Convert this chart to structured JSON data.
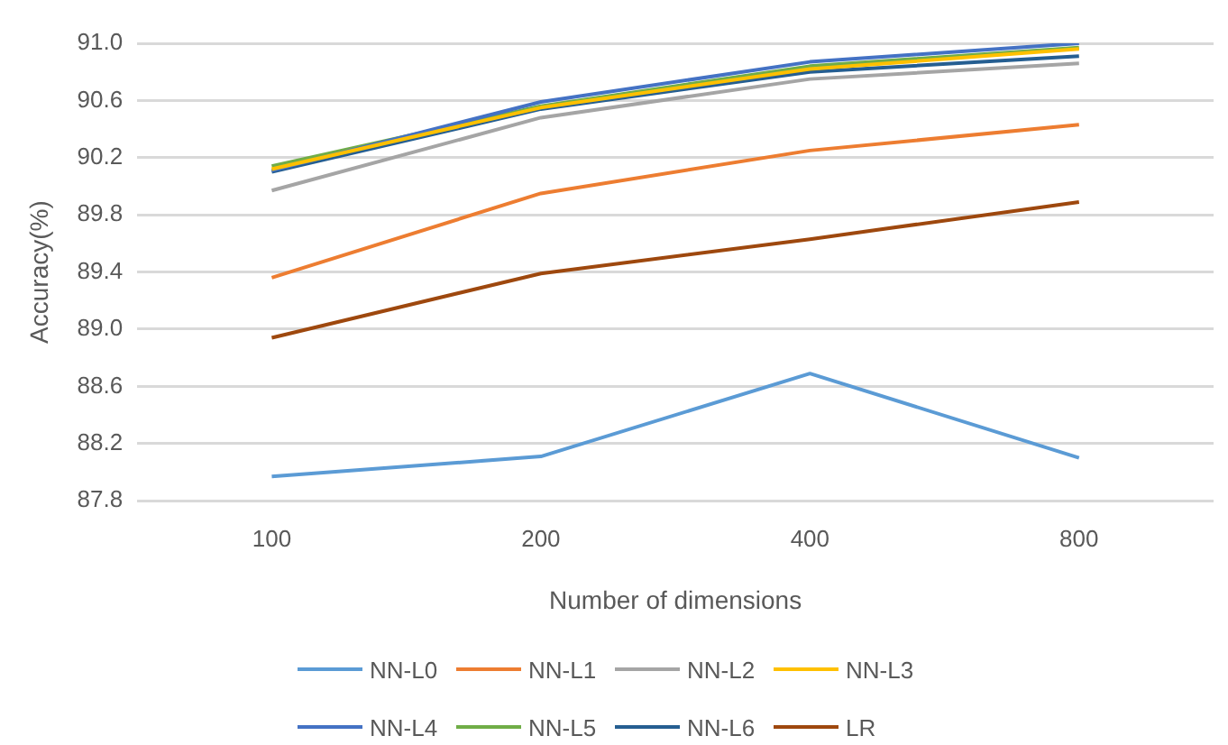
{
  "chart_data": {
    "type": "line",
    "xlabel": "Number of dimensions",
    "ylabel": "Accuracy(%)",
    "categories": [
      "100",
      "200",
      "400",
      "800"
    ],
    "ylim": [
      87.8,
      91.0
    ],
    "yticks": [
      {
        "value": 87.8,
        "label": "87.8"
      },
      {
        "value": 88.2,
        "label": "88.2"
      },
      {
        "value": 88.6,
        "label": "88.6"
      },
      {
        "value": 89.0,
        "label": "89.0"
      },
      {
        "value": 89.4,
        "label": "89.4"
      },
      {
        "value": 89.8,
        "label": "89.8"
      },
      {
        "value": 90.2,
        "label": "90.2"
      },
      {
        "value": 90.6,
        "label": "90.6"
      },
      {
        "value": 91.0,
        "label": "91.0"
      }
    ],
    "grid": "y",
    "legend": "bottom",
    "marker": "none",
    "series": [
      {
        "name": "NN-L0",
        "color": "#5b9bd5",
        "values": [
          87.97,
          88.11,
          88.69,
          88.1
        ]
      },
      {
        "name": "NN-L1",
        "color": "#ed7d31",
        "values": [
          89.36,
          89.95,
          90.25,
          90.43
        ]
      },
      {
        "name": "NN-L2",
        "color": "#a5a5a5",
        "values": [
          89.97,
          90.48,
          90.75,
          90.86
        ]
      },
      {
        "name": "NN-L3",
        "color": "#ffc000",
        "values": [
          90.12,
          90.55,
          90.82,
          90.96
        ]
      },
      {
        "name": "NN-L4",
        "color": "#4472c4",
        "values": [
          90.11,
          90.59,
          90.87,
          91.0
        ]
      },
      {
        "name": "NN-L5",
        "color": "#70ad47",
        "values": [
          90.14,
          90.56,
          90.84,
          90.97
        ]
      },
      {
        "name": "NN-L6",
        "color": "#255e91",
        "values": [
          90.1,
          90.54,
          90.8,
          90.91
        ]
      },
      {
        "name": "LR",
        "color": "#9e480e",
        "values": [
          88.94,
          89.39,
          89.63,
          89.89
        ]
      }
    ]
  }
}
